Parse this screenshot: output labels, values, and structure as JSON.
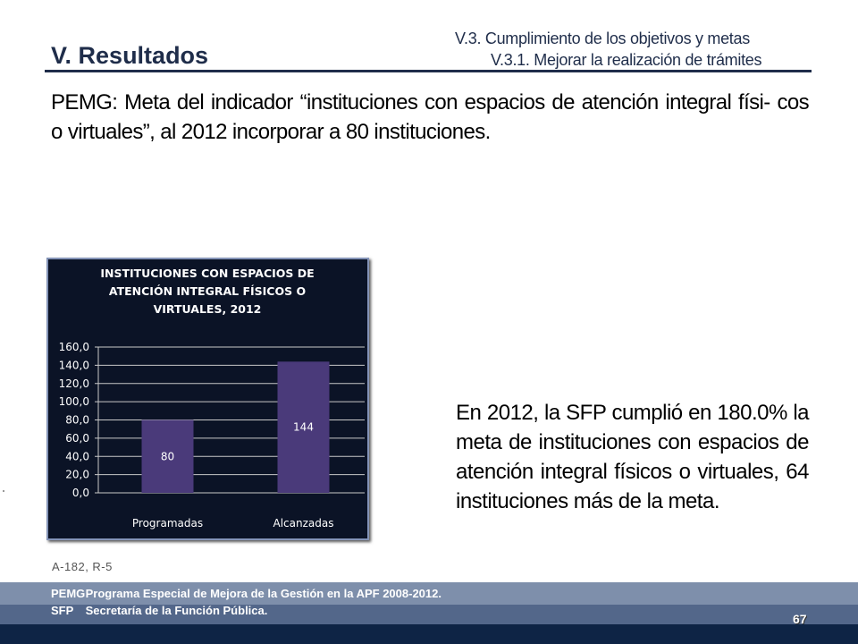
{
  "header": {
    "section_title": "V. Resultados",
    "subsection": "V.3. Cumplimiento de los objetivos y metas",
    "sub_subsection": "V.3.1. Mejorar la realización de trámites"
  },
  "intro_text": "PEMG: Meta del indicador “instituciones con espacios de atención integral físi- cos o virtuales”, al 2012 incorporar a 80 instituciones.",
  "chart_data": {
    "type": "bar",
    "title": "INSTITUCIONES CON ESPACIOS DE ATENCIÓN INTEGRAL FÍSICOS O VIRTUALES, 2012",
    "title_lines": [
      "INSTITUCIONES CON ESPACIOS DE",
      "ATENCIÓN INTEGRAL FÍSICOS O",
      "VIRTUALES, 2012"
    ],
    "categories": [
      "Programadas",
      "Alcanzadas"
    ],
    "values": [
      80,
      144
    ],
    "data_labels": [
      "80",
      "144"
    ],
    "ylim": [
      0,
      160
    ],
    "yticks": [
      0,
      20,
      40,
      60,
      80,
      100,
      120,
      140,
      160
    ],
    "ytick_labels": [
      "0,0",
      "20,0",
      "40,0",
      "60,0",
      "80,0",
      "100,0",
      "120,0",
      "140,0",
      "160,0"
    ],
    "grid": true,
    "colors": {
      "background": "#0b1326",
      "bar": "#4a3a7a",
      "grid": "#c8c8c8",
      "text": "#ffffff"
    }
  },
  "summary_text": "En 2012, la SFP cumplió en 180.0% la meta de instituciones con espacios de atención integral físicos o virtuales, 64 instituciones más de la meta.",
  "reference": "A-182, R-5",
  "footer": {
    "rows": [
      {
        "abbr": "PEMG",
        "text": "Programa Especial de Mejora de la Gestión en la APF 2008-2012."
      },
      {
        "abbr": "SFP",
        "text": "Secretaría de la  Función Pública."
      }
    ],
    "page_number": "67"
  }
}
